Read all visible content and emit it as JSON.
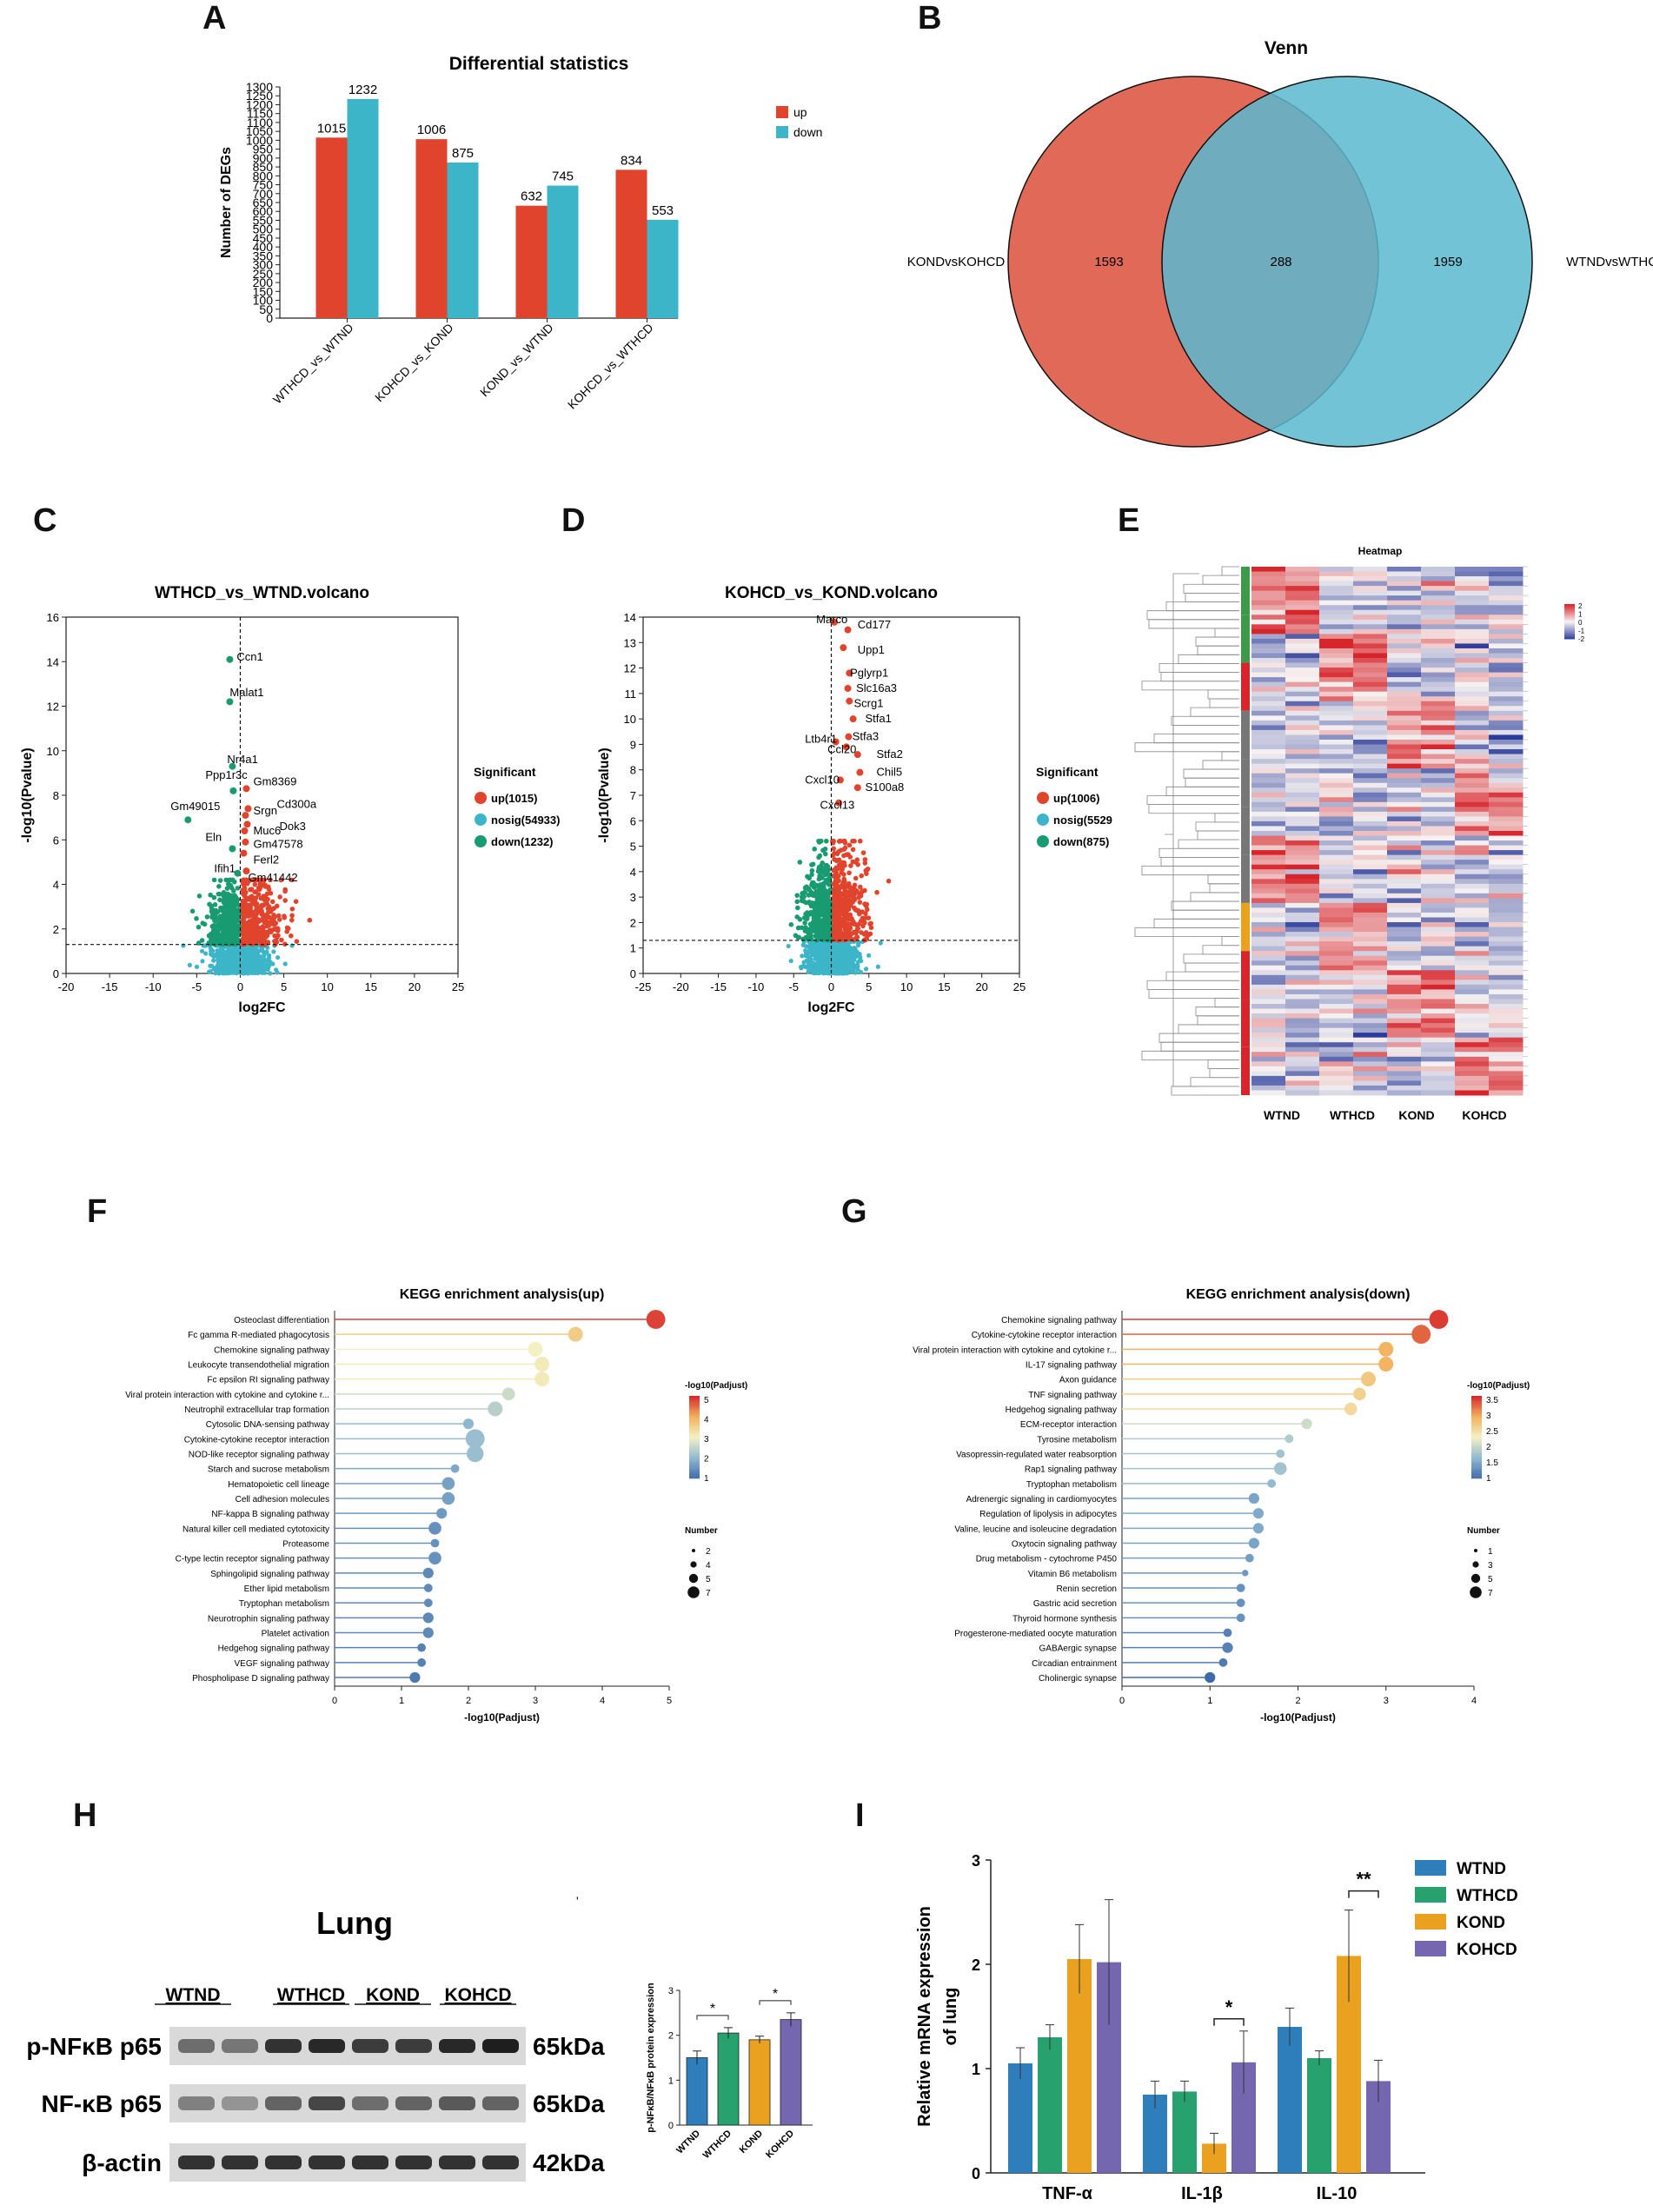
{
  "panels": {
    "a": "A",
    "b": "B",
    "c": "C",
    "d": "D",
    "e": "E",
    "f": "F",
    "g": "G",
    "h": "H",
    "i": "I"
  },
  "chart_data": [
    {
      "id": "A",
      "type": "bar",
      "title": "Differential statistics",
      "ylabel": "Number of DEGs",
      "ylim": [
        0,
        1300
      ],
      "yticks": [
        0,
        50,
        100,
        150,
        200,
        250,
        300,
        350,
        400,
        450,
        500,
        550,
        600,
        650,
        700,
        750,
        800,
        850,
        900,
        950,
        1000,
        1050,
        1100,
        1150,
        1200,
        1250,
        1300
      ],
      "categories": [
        "WTHCD_vs_WTND",
        "KOHCD_vs_KOND",
        "KOND_vs_WTND",
        "KOHCD_vs_WTHCD"
      ],
      "series": [
        {
          "name": "up",
          "color": "#e0442c",
          "values": [
            1015,
            1006,
            632,
            834
          ]
        },
        {
          "name": "down",
          "color": "#3db5c9",
          "values": [
            1232,
            875,
            745,
            553
          ]
        }
      ]
    },
    {
      "id": "B",
      "type": "venn",
      "title": "Venn",
      "sets": [
        {
          "name": "KONDvsKOHCD",
          "only": "1593",
          "color": "#e06a57"
        },
        {
          "name": "WTNDvsWTHCD",
          "only": "1959",
          "color": "#5ab9d0"
        }
      ],
      "overlap": "288"
    },
    {
      "id": "C",
      "type": "scatter",
      "title": "WTHCD_vs_WTND.volcano",
      "xlabel": "log2FC",
      "ylabel": "-log10(Pvalue)",
      "xlim": [
        -20,
        25
      ],
      "ylim": [
        0,
        16
      ],
      "xticks": [
        -20,
        -15,
        -10,
        -5,
        0,
        5,
        10,
        15,
        20,
        25
      ],
      "yticks": [
        0,
        2,
        4,
        6,
        8,
        10,
        12,
        14,
        16
      ],
      "threshold": 1.3,
      "legend_title": "Significant",
      "legend": [
        "up(1015)",
        "nosig(54933)",
        "down(1232)"
      ],
      "genes": [
        {
          "name": "Ccn1",
          "x": -1.2,
          "y": 14.1,
          "c": "down",
          "lx": -0.4,
          "ly": 14.2
        },
        {
          "name": "Malat1",
          "x": -1.2,
          "y": 12.2,
          "c": "down",
          "lx": -1.2,
          "ly": 12.6
        },
        {
          "name": "Nr4a1",
          "x": -0.9,
          "y": 9.3,
          "c": "down",
          "lx": -1.5,
          "ly": 9.6
        },
        {
          "name": "Ppp1r3c",
          "x": -0.8,
          "y": 8.2,
          "c": "down",
          "lx": -4.0,
          "ly": 8.9
        },
        {
          "name": "Gm8369",
          "x": 0.7,
          "y": 8.3,
          "c": "up",
          "lx": 1.5,
          "ly": 8.6
        },
        {
          "name": "Cd300a",
          "x": 0.9,
          "y": 7.4,
          "c": "up",
          "lx": 4.2,
          "ly": 7.6
        },
        {
          "name": "Gm49015",
          "x": -6.0,
          "y": 6.9,
          "c": "down",
          "lx": -8.0,
          "ly": 7.5
        },
        {
          "name": "Srgn",
          "x": 0.6,
          "y": 7.1,
          "c": "up",
          "lx": 1.5,
          "ly": 7.3
        },
        {
          "name": "Dok3",
          "x": 0.8,
          "y": 6.7,
          "c": "up",
          "lx": 4.5,
          "ly": 6.6
        },
        {
          "name": "Muc6",
          "x": 0.5,
          "y": 6.4,
          "c": "up",
          "lx": 1.5,
          "ly": 6.4
        },
        {
          "name": "Eln",
          "x": -0.9,
          "y": 5.6,
          "c": "down",
          "lx": -4.0,
          "ly": 6.1
        },
        {
          "name": "Gm47578",
          "x": 0.6,
          "y": 5.9,
          "c": "up",
          "lx": 1.5,
          "ly": 5.8
        },
        {
          "name": "Ferl2",
          "x": 0.4,
          "y": 5.4,
          "c": "up",
          "lx": 1.5,
          "ly": 5.1
        },
        {
          "name": "Ifih1",
          "x": -0.3,
          "y": 4.5,
          "c": "down",
          "lx": -3.0,
          "ly": 4.7
        },
        {
          "name": "Gm41442",
          "x": 0.7,
          "y": 4.6,
          "c": "up",
          "lx": 0.9,
          "ly": 4.3
        }
      ]
    },
    {
      "id": "D",
      "type": "scatter",
      "title": "KOHCD_vs_KOND.volcano",
      "xlabel": "log2FC",
      "ylabel": "-log10(Pvalue)",
      "xlim": [
        -25,
        25
      ],
      "ylim": [
        0,
        14
      ],
      "xticks": [
        -25,
        -20,
        -15,
        -10,
        -5,
        0,
        5,
        10,
        15,
        20,
        25
      ],
      "yticks": [
        0,
        1,
        2,
        3,
        4,
        5,
        6,
        7,
        8,
        9,
        10,
        11,
        12,
        13,
        14
      ],
      "threshold": 1.3,
      "legend_title": "Significant",
      "legend": [
        "up(1006)",
        "nosig(5529",
        "down(875)"
      ],
      "genes": [
        {
          "name": "Marco",
          "x": 0.4,
          "y": 13.8,
          "c": "up",
          "lx": -2.0,
          "ly": 13.9
        },
        {
          "name": "Cd177",
          "x": 2.2,
          "y": 13.5,
          "c": "up",
          "lx": 3.5,
          "ly": 13.7
        },
        {
          "name": "Upp1",
          "x": 1.6,
          "y": 12.8,
          "c": "up",
          "lx": 3.5,
          "ly": 12.7
        },
        {
          "name": "Pglyrp1",
          "x": 2.4,
          "y": 11.8,
          "c": "up",
          "lx": 2.5,
          "ly": 11.8
        },
        {
          "name": "Slc16a3",
          "x": 2.2,
          "y": 11.2,
          "c": "up",
          "lx": 3.3,
          "ly": 11.2
        },
        {
          "name": "Scrg1",
          "x": 2.4,
          "y": 10.7,
          "c": "up",
          "lx": 3.0,
          "ly": 10.6
        },
        {
          "name": "Stfa1",
          "x": 2.9,
          "y": 10.0,
          "c": "up",
          "lx": 4.5,
          "ly": 10.0
        },
        {
          "name": "Stfa3",
          "x": 2.3,
          "y": 9.3,
          "c": "up",
          "lx": 2.8,
          "ly": 9.3
        },
        {
          "name": "Ltb4r1",
          "x": 0.6,
          "y": 9.1,
          "c": "up",
          "lx": -3.5,
          "ly": 9.2
        },
        {
          "name": "Ccl20",
          "x": 2.0,
          "y": 8.9,
          "c": "up",
          "lx": -0.5,
          "ly": 8.8
        },
        {
          "name": "Stfa2",
          "x": 3.5,
          "y": 8.6,
          "c": "up",
          "lx": 6.0,
          "ly": 8.6
        },
        {
          "name": "Chil5",
          "x": 3.8,
          "y": 7.9,
          "c": "up",
          "lx": 6.0,
          "ly": 7.9
        },
        {
          "name": "Cxcl10",
          "x": 1.2,
          "y": 7.6,
          "c": "up",
          "lx": -3.5,
          "ly": 7.6
        },
        {
          "name": "S100a8",
          "x": 3.5,
          "y": 7.3,
          "c": "up",
          "lx": 4.5,
          "ly": 7.3
        },
        {
          "name": "Cxcl13",
          "x": 1.0,
          "y": 6.7,
          "c": "up",
          "lx": -1.5,
          "ly": 6.6
        }
      ]
    },
    {
      "id": "E",
      "type": "heatmap",
      "title": "Heatmap",
      "columns": [
        "WTND",
        "WTHCD",
        "KOND",
        "KOHCD"
      ],
      "scale_ticks": [
        "2",
        "1",
        "0",
        "-1",
        "-2"
      ]
    },
    {
      "id": "F",
      "type": "lollipop",
      "title": "KEGG enrichment analysis(up)",
      "xlabel": "-log10(Padjust)",
      "xlim": [
        0,
        5
      ],
      "xticks": [
        0,
        1,
        2,
        3,
        4,
        5
      ],
      "color_title": "-log10(Padjust)",
      "color_ticks": [
        "5",
        "4",
        "3",
        "2",
        "1"
      ],
      "color_range": [
        1,
        5
      ],
      "size_title": "Number",
      "size_ticks": [
        "2",
        "4",
        "5",
        "7"
      ],
      "terms": [
        "Osteoclast differentiation",
        "Fc gamma R-mediated phagocytosis",
        "Chemokine signaling pathway",
        "Leukocyte transendothelial migration",
        "Fc epsilon RI signaling pathway",
        "Viral protein interaction with cytokine and cytokine r...",
        "Neutrophil extracellular trap formation",
        "Cytosolic DNA-sensing pathway",
        "Cytokine-cytokine receptor interaction",
        "NOD-like receptor signaling pathway",
        "Starch and sucrose metabolism",
        "Hematopoietic cell lineage",
        "Cell adhesion molecules",
        "NF-kappa B signaling pathway",
        "Natural killer cell mediated cytotoxicity",
        "Proteasome",
        "C-type lectin receptor signaling pathway",
        "Sphingolipid signaling pathway",
        "Ether lipid metabolism",
        "Tryptophan metabolism",
        "Neurotrophin signaling pathway",
        "Platelet activation",
        "Hedgehog signaling pathway",
        "VEGF signaling pathway",
        "Phospholipase D signaling pathway"
      ],
      "values": [
        4.8,
        3.6,
        3.0,
        3.1,
        3.1,
        2.6,
        2.4,
        2.0,
        2.1,
        2.1,
        1.8,
        1.7,
        1.7,
        1.6,
        1.5,
        1.5,
        1.5,
        1.4,
        1.4,
        1.4,
        1.4,
        1.4,
        1.3,
        1.3,
        1.2
      ],
      "counts": [
        7,
        5,
        5,
        5,
        5,
        4,
        5,
        3,
        7,
        6,
        2,
        4,
        4,
        3,
        4,
        2,
        4,
        3,
        2,
        2,
        3,
        3,
        2,
        2,
        3
      ]
    },
    {
      "id": "G",
      "type": "lollipop",
      "title": "KEGG enrichment analysis(down)",
      "xlabel": "-log10(Padjust)",
      "xlim": [
        0,
        4
      ],
      "xticks": [
        0,
        1,
        2,
        3,
        4
      ],
      "color_title": "-log10(Padjust)",
      "color_ticks": [
        "3.5",
        "3",
        "2.5",
        "2",
        "1.5",
        "1"
      ],
      "color_range": [
        1,
        3.7
      ],
      "size_title": "Number",
      "size_ticks": [
        "1",
        "3",
        "5",
        "7"
      ],
      "terms": [
        "Chemokine signaling pathway",
        "Cytokine-cytokine receptor interaction",
        "Viral protein interaction with cytokine and cytokine r...",
        "IL-17 signaling pathway",
        "Axon guidance",
        "TNF signaling pathway",
        "Hedgehog signaling pathway",
        "ECM-receptor interaction",
        "Tyrosine metabolism",
        "Vasopressin-regulated water reabsorption",
        "Rap1 signaling pathway",
        "Tryptophan metabolism",
        "Adrenergic signaling in cardiomyocytes",
        "Regulation of lipolysis in adipocytes",
        "Valine, leucine and isoleucine degradation",
        "Oxytocin signaling pathway",
        "Drug metabolism - cytochrome P450",
        "Vitamin B6 metabolism",
        "Renin secretion",
        "Gastric acid secretion",
        "Thyroid hormone synthesis",
        "Progesterone-mediated oocyte maturation",
        "GABAergic synapse",
        "Circadian entrainment",
        "Cholinergic synapse"
      ],
      "values": [
        3.6,
        3.4,
        3.0,
        3.0,
        2.8,
        2.7,
        2.6,
        2.1,
        1.9,
        1.8,
        1.8,
        1.7,
        1.5,
        1.55,
        1.55,
        1.5,
        1.45,
        1.4,
        1.35,
        1.35,
        1.35,
        1.2,
        1.2,
        1.15,
        1.0
      ],
      "counts": [
        7,
        7,
        5,
        5,
        5,
        4,
        4,
        3,
        2,
        2,
        4,
        2,
        3,
        3,
        3,
        3,
        2,
        1,
        2,
        2,
        2,
        2,
        3,
        2,
        3
      ]
    },
    {
      "id": "H",
      "type": "bar",
      "ylabel": "p-NFκB/NFκB protein expression",
      "ylim": [
        0,
        3
      ],
      "yticks": [
        0,
        1,
        2,
        3
      ],
      "categories": [
        "WTND",
        "WTHCD",
        "KOND",
        "KOHCD"
      ],
      "values": [
        1.5,
        2.05,
        1.9,
        2.35
      ],
      "errors": [
        0.15,
        0.12,
        0.08,
        0.15
      ],
      "colors": [
        "#2f7ebc",
        "#27a26f",
        "#e9a11f",
        "#7467b0"
      ],
      "sig": [
        "*",
        "*"
      ]
    },
    {
      "id": "I",
      "type": "bar",
      "ylabel": "Relative mRNA  expression\nof lung",
      "ylim": [
        0,
        3
      ],
      "yticks": [
        0,
        1,
        2,
        3
      ],
      "categories": [
        "TNF-α",
        "IL-1β",
        "IL-10"
      ],
      "series": [
        {
          "name": "WTND",
          "color": "#2f7ebc",
          "values": [
            1.05,
            0.75,
            1.4
          ],
          "errors": [
            0.15,
            0.13,
            0.18
          ]
        },
        {
          "name": "WTHCD",
          "color": "#27a26f",
          "values": [
            1.3,
            0.78,
            1.1
          ],
          "errors": [
            0.12,
            0.1,
            0.07
          ]
        },
        {
          "name": "KOND",
          "color": "#e9a11f",
          "values": [
            2.05,
            0.28,
            2.08
          ],
          "errors": [
            0.33,
            0.1,
            0.44
          ]
        },
        {
          "name": "KOHCD",
          "color": "#7467b0",
          "values": [
            2.02,
            1.06,
            0.88
          ],
          "errors": [
            0.6,
            0.3,
            0.2
          ]
        }
      ],
      "sig": [
        "*",
        "**"
      ]
    }
  ],
  "western": {
    "title": "Lung",
    "groups": [
      "WTND",
      "WTHCD",
      "KOND",
      "KOHCD"
    ],
    "rows": [
      {
        "protein": "p-NFκB p65",
        "size": "65kDa",
        "intensity": [
          0.55,
          0.5,
          0.85,
          0.9,
          0.8,
          0.8,
          0.9,
          0.95
        ]
      },
      {
        "protein": "NF-κB p65",
        "size": "65kDa",
        "intensity": [
          0.45,
          0.35,
          0.6,
          0.75,
          0.55,
          0.6,
          0.65,
          0.6
        ]
      },
      {
        "protein": "β-actin",
        "size": "42kDa",
        "intensity": [
          0.85,
          0.85,
          0.85,
          0.85,
          0.85,
          0.85,
          0.85,
          0.85
        ]
      }
    ]
  }
}
